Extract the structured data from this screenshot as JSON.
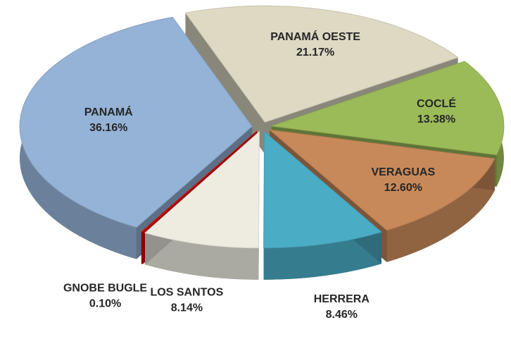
{
  "chart_data": {
    "type": "pie",
    "categories": [
      "PANAMÁ OESTE",
      "COCLÉ",
      "VERAGUAS",
      "HERRERA",
      "LOS SANTOS",
      "GNOBE BUGLE",
      "PANAMÁ"
    ],
    "values": [
      21.17,
      13.38,
      12.6,
      8.46,
      8.14,
      0.1,
      36.16
    ],
    "value_labels": [
      "21.17%",
      "13.38%",
      "12.60%",
      "8.46%",
      "8.14%",
      "0.10%",
      "36.16%"
    ],
    "colors": [
      "#ddd9c3",
      "#9bbb59",
      "#c8895a",
      "#4bacc6",
      "#eeece1",
      "#e00000",
      "#95b3d7"
    ]
  }
}
